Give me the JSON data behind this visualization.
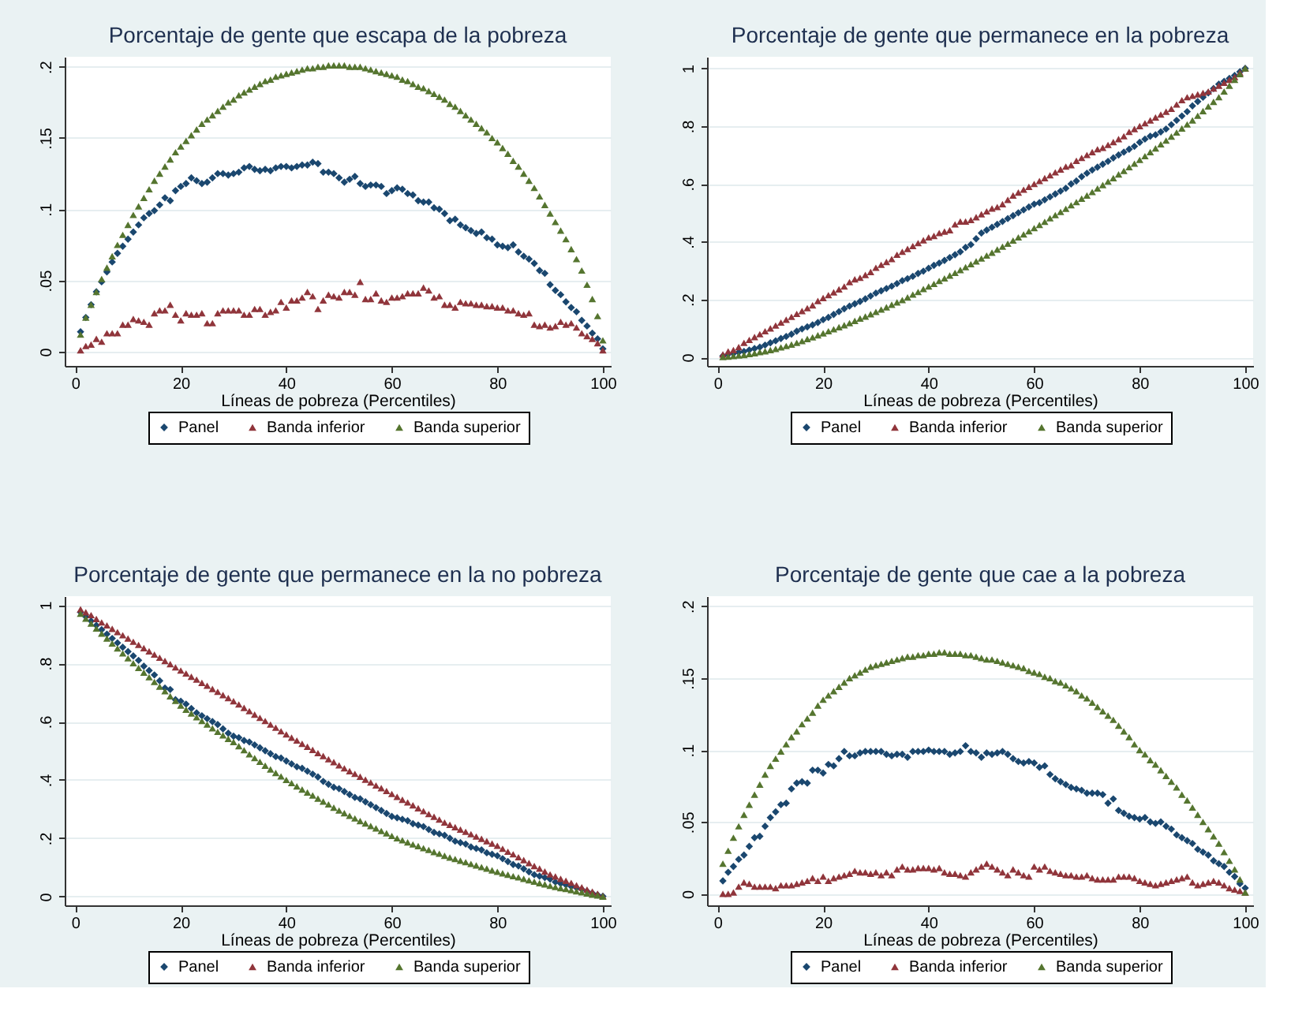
{
  "chart_data": [
    {
      "type": "scatter",
      "title": "Porcentaje de gente que escapa de la pobreza",
      "xlabel": "Líneas de pobreza (Percentiles)",
      "legend": "bottom",
      "grid": "y",
      "xlim": [
        -2,
        101.5
      ],
      "xticks": [
        0,
        20,
        40,
        60,
        80,
        100
      ],
      "ylim": [
        -0.01,
        0.207
      ],
      "yticks": [
        0,
        {
          "value": 0.05,
          "label": ".05"
        },
        {
          "value": 0.1,
          "label": ".1"
        },
        {
          "value": 0.15,
          "label": ".15"
        },
        {
          "value": 0.2,
          "label": ".2"
        }
      ],
      "x": [
        1,
        2,
        3,
        4,
        5,
        6,
        7,
        8,
        9,
        10,
        11,
        12,
        13,
        14,
        15,
        16,
        17,
        18,
        19,
        20,
        21,
        22,
        23,
        24,
        25,
        26,
        27,
        28,
        29,
        30,
        31,
        32,
        33,
        34,
        35,
        36,
        37,
        38,
        39,
        40,
        41,
        42,
        43,
        44,
        45,
        46,
        47,
        48,
        49,
        50,
        51,
        52,
        53,
        54,
        55,
        56,
        57,
        58,
        59,
        60,
        61,
        62,
        63,
        64,
        65,
        66,
        67,
        68,
        69,
        70,
        71,
        72,
        73,
        74,
        75,
        76,
        77,
        78,
        79,
        80,
        81,
        82,
        83,
        84,
        85,
        86,
        87,
        88,
        89,
        90,
        91,
        92,
        93,
        94,
        95,
        96,
        97,
        98,
        99,
        100
      ],
      "series": [
        {
          "name": "Panel",
          "color": "#1a476f",
          "marker": "diamond",
          "values": [
            0.014,
            0.024,
            0.033,
            0.042,
            0.049,
            0.056,
            0.063,
            0.069,
            0.074,
            0.079,
            0.084,
            0.089,
            0.094,
            0.097,
            0.099,
            0.103,
            0.108,
            0.106,
            0.113,
            0.116,
            0.118,
            0.122,
            0.12,
            0.118,
            0.119,
            0.122,
            0.125,
            0.125,
            0.124,
            0.125,
            0.126,
            0.129,
            0.13,
            0.128,
            0.127,
            0.128,
            0.127,
            0.129,
            0.13,
            0.13,
            0.129,
            0.13,
            0.131,
            0.131,
            0.133,
            0.132,
            0.126,
            0.126,
            0.125,
            0.122,
            0.119,
            0.121,
            0.123,
            0.118,
            0.116,
            0.117,
            0.117,
            0.116,
            0.111,
            0.113,
            0.115,
            0.114,
            0.111,
            0.11,
            0.106,
            0.105,
            0.105,
            0.101,
            0.1,
            0.097,
            0.092,
            0.093,
            0.089,
            0.087,
            0.085,
            0.083,
            0.084,
            0.08,
            0.079,
            0.075,
            0.074,
            0.073,
            0.075,
            0.07,
            0.067,
            0.065,
            0.062,
            0.057,
            0.055,
            0.047,
            0.043,
            0.04,
            0.035,
            0.031,
            0.028,
            0.022,
            0.018,
            0.013,
            0.009,
            0.002
          ]
        },
        {
          "name": "Banda inferior",
          "color": "#90353b",
          "marker": "triangle",
          "values": [
            0.001,
            0.004,
            0.005,
            0.009,
            0.007,
            0.013,
            0.013,
            0.013,
            0.019,
            0.019,
            0.023,
            0.022,
            0.021,
            0.019,
            0.027,
            0.029,
            0.029,
            0.033,
            0.026,
            0.022,
            0.027,
            0.026,
            0.026,
            0.027,
            0.02,
            0.02,
            0.027,
            0.029,
            0.029,
            0.029,
            0.029,
            0.026,
            0.026,
            0.03,
            0.03,
            0.026,
            0.028,
            0.029,
            0.035,
            0.031,
            0.036,
            0.036,
            0.038,
            0.042,
            0.039,
            0.03,
            0.036,
            0.04,
            0.039,
            0.038,
            0.042,
            0.042,
            0.04,
            0.049,
            0.037,
            0.037,
            0.041,
            0.036,
            0.035,
            0.038,
            0.038,
            0.039,
            0.041,
            0.041,
            0.041,
            0.045,
            0.043,
            0.038,
            0.039,
            0.033,
            0.033,
            0.031,
            0.035,
            0.034,
            0.034,
            0.033,
            0.033,
            0.032,
            0.032,
            0.031,
            0.031,
            0.029,
            0.029,
            0.027,
            0.026,
            0.027,
            0.019,
            0.018,
            0.019,
            0.017,
            0.018,
            0.021,
            0.019,
            0.02,
            0.017,
            0.013,
            0.011,
            0.009,
            0.006,
            0.001
          ]
        },
        {
          "name": "Banda superior",
          "color": "#55752f",
          "marker": "triangle",
          "values": [
            0.012,
            0.024,
            0.033,
            0.042,
            0.051,
            0.059,
            0.067,
            0.075,
            0.082,
            0.089,
            0.096,
            0.102,
            0.108,
            0.114,
            0.12,
            0.125,
            0.13,
            0.135,
            0.14,
            0.144,
            0.148,
            0.152,
            0.156,
            0.16,
            0.163,
            0.166,
            0.169,
            0.172,
            0.175,
            0.177,
            0.18,
            0.182,
            0.184,
            0.186,
            0.188,
            0.19,
            0.191,
            0.193,
            0.194,
            0.195,
            0.196,
            0.197,
            0.198,
            0.199,
            0.199,
            0.2,
            0.2,
            0.201,
            0.201,
            0.201,
            0.201,
            0.2,
            0.2,
            0.2,
            0.199,
            0.198,
            0.197,
            0.196,
            0.195,
            0.194,
            0.193,
            0.191,
            0.19,
            0.188,
            0.186,
            0.185,
            0.183,
            0.181,
            0.179,
            0.177,
            0.174,
            0.172,
            0.169,
            0.166,
            0.163,
            0.16,
            0.157,
            0.154,
            0.15,
            0.147,
            0.143,
            0.139,
            0.134,
            0.13,
            0.125,
            0.12,
            0.115,
            0.109,
            0.103,
            0.097,
            0.091,
            0.085,
            0.079,
            0.072,
            0.065,
            0.057,
            0.047,
            0.037,
            0.025,
            0.008
          ]
        }
      ]
    },
    {
      "type": "scatter",
      "title": "Porcentaje de gente que permanece en la pobreza",
      "xlabel": "Líneas de pobreza (Percentiles)",
      "legend": "bottom",
      "grid": "y",
      "xlim": [
        -2,
        101.5
      ],
      "xticks": [
        0,
        20,
        40,
        60,
        80,
        100
      ],
      "ylim": [
        -0.03,
        1.04
      ],
      "yticks": [
        0,
        {
          "value": 0.2,
          "label": ".2"
        },
        {
          "value": 0.4,
          "label": ".4"
        },
        {
          "value": 0.6,
          "label": ".6"
        },
        {
          "value": 0.8,
          "label": ".8"
        },
        1
      ],
      "x": [
        1,
        2,
        3,
        4,
        5,
        6,
        7,
        8,
        9,
        10,
        11,
        12,
        13,
        14,
        15,
        16,
        17,
        18,
        19,
        20,
        21,
        22,
        23,
        24,
        25,
        26,
        27,
        28,
        29,
        30,
        31,
        32,
        33,
        34,
        35,
        36,
        37,
        38,
        39,
        40,
        41,
        42,
        43,
        44,
        45,
        46,
        47,
        48,
        49,
        50,
        51,
        52,
        53,
        54,
        55,
        56,
        57,
        58,
        59,
        60,
        61,
        62,
        63,
        64,
        65,
        66,
        67,
        68,
        69,
        70,
        71,
        72,
        73,
        74,
        75,
        76,
        77,
        78,
        79,
        80,
        81,
        82,
        83,
        84,
        85,
        86,
        87,
        88,
        89,
        90,
        91,
        92,
        93,
        94,
        95,
        96,
        97,
        98,
        99,
        100
      ],
      "series": [
        {
          "name": "Panel",
          "color": "#1a476f",
          "marker": "diamond",
          "values": [
            0.005,
            0.01,
            0.013,
            0.017,
            0.02,
            0.025,
            0.03,
            0.035,
            0.042,
            0.05,
            0.057,
            0.065,
            0.072,
            0.08,
            0.09,
            0.098,
            0.105,
            0.112,
            0.12,
            0.13,
            0.138,
            0.148,
            0.158,
            0.168,
            0.177,
            0.185,
            0.193,
            0.202,
            0.212,
            0.222,
            0.23,
            0.238,
            0.246,
            0.255,
            0.265,
            0.272,
            0.28,
            0.29,
            0.298,
            0.308,
            0.318,
            0.326,
            0.335,
            0.345,
            0.355,
            0.365,
            0.38,
            0.39,
            0.41,
            0.43,
            0.44,
            0.45,
            0.46,
            0.47,
            0.48,
            0.49,
            0.5,
            0.51,
            0.52,
            0.53,
            0.535,
            0.545,
            0.555,
            0.565,
            0.575,
            0.585,
            0.6,
            0.61,
            0.625,
            0.637,
            0.648,
            0.658,
            0.668,
            0.678,
            0.69,
            0.7,
            0.71,
            0.72,
            0.73,
            0.744,
            0.755,
            0.765,
            0.77,
            0.78,
            0.79,
            0.805,
            0.82,
            0.835,
            0.85,
            0.87,
            0.885,
            0.9,
            0.915,
            0.93,
            0.945,
            0.955,
            0.965,
            0.975,
            0.988,
            1.0
          ]
        },
        {
          "name": "Banda inferior",
          "color": "#90353b",
          "marker": "triangle",
          "values": [
            0.01,
            0.02,
            0.025,
            0.035,
            0.05,
            0.06,
            0.07,
            0.08,
            0.09,
            0.1,
            0.11,
            0.12,
            0.13,
            0.14,
            0.15,
            0.16,
            0.17,
            0.18,
            0.195,
            0.205,
            0.215,
            0.225,
            0.235,
            0.245,
            0.26,
            0.27,
            0.275,
            0.285,
            0.295,
            0.31,
            0.32,
            0.33,
            0.34,
            0.355,
            0.365,
            0.375,
            0.385,
            0.395,
            0.405,
            0.415,
            0.42,
            0.43,
            0.435,
            0.44,
            0.46,
            0.47,
            0.47,
            0.475,
            0.485,
            0.495,
            0.505,
            0.515,
            0.52,
            0.53,
            0.545,
            0.56,
            0.57,
            0.58,
            0.59,
            0.6,
            0.61,
            0.62,
            0.63,
            0.64,
            0.65,
            0.66,
            0.665,
            0.68,
            0.69,
            0.7,
            0.71,
            0.72,
            0.725,
            0.735,
            0.745,
            0.755,
            0.765,
            0.78,
            0.79,
            0.8,
            0.81,
            0.82,
            0.83,
            0.84,
            0.85,
            0.86,
            0.875,
            0.89,
            0.9,
            0.905,
            0.91,
            0.915,
            0.92,
            0.93,
            0.94,
            0.95,
            0.96,
            0.97,
            0.985,
            1.0
          ]
        },
        {
          "name": "Banda superior",
          "color": "#55752f",
          "marker": "triangle",
          "values": [
            0.001,
            0.002,
            0.004,
            0.006,
            0.008,
            0.011,
            0.014,
            0.018,
            0.021,
            0.025,
            0.029,
            0.034,
            0.039,
            0.044,
            0.05,
            0.056,
            0.063,
            0.069,
            0.076,
            0.083,
            0.09,
            0.097,
            0.104,
            0.111,
            0.118,
            0.126,
            0.134,
            0.141,
            0.149,
            0.157,
            0.165,
            0.173,
            0.182,
            0.19,
            0.198,
            0.207,
            0.217,
            0.226,
            0.236,
            0.245,
            0.254,
            0.264,
            0.273,
            0.283,
            0.292,
            0.302,
            0.312,
            0.322,
            0.332,
            0.342,
            0.352,
            0.362,
            0.373,
            0.383,
            0.393,
            0.404,
            0.415,
            0.425,
            0.436,
            0.447,
            0.458,
            0.469,
            0.481,
            0.492,
            0.503,
            0.514,
            0.526,
            0.537,
            0.549,
            0.56,
            0.572,
            0.584,
            0.596,
            0.608,
            0.62,
            0.633,
            0.645,
            0.658,
            0.67,
            0.683,
            0.696,
            0.71,
            0.723,
            0.737,
            0.75,
            0.764,
            0.778,
            0.792,
            0.806,
            0.82,
            0.836,
            0.852,
            0.868,
            0.884,
            0.9,
            0.92,
            0.94,
            0.96,
            0.98,
            1.0
          ]
        }
      ]
    },
    {
      "type": "scatter",
      "title": "Porcentaje de gente que permanece en la no pobreza",
      "xlabel": "Líneas de pobreza (Percentiles)",
      "legend": "bottom",
      "grid": "y",
      "xlim": [
        -2,
        101.5
      ],
      "xticks": [
        0,
        20,
        40,
        60,
        80,
        100
      ],
      "ylim": [
        -0.03,
        1.03
      ],
      "yticks": [
        0,
        {
          "value": 0.2,
          "label": ".2"
        },
        {
          "value": 0.4,
          "label": ".4"
        },
        {
          "value": 0.6,
          "label": ".6"
        },
        {
          "value": 0.8,
          "label": ".8"
        },
        1
      ],
      "x": [
        1,
        2,
        3,
        4,
        5,
        6,
        7,
        8,
        9,
        10,
        11,
        12,
        13,
        14,
        15,
        16,
        17,
        18,
        19,
        20,
        21,
        22,
        23,
        24,
        25,
        26,
        27,
        28,
        29,
        30,
        31,
        32,
        33,
        34,
        35,
        36,
        37,
        38,
        39,
        40,
        41,
        42,
        43,
        44,
        45,
        46,
        47,
        48,
        49,
        50,
        51,
        52,
        53,
        54,
        55,
        56,
        57,
        58,
        59,
        60,
        61,
        62,
        63,
        64,
        65,
        66,
        67,
        68,
        69,
        70,
        71,
        72,
        73,
        74,
        75,
        76,
        77,
        78,
        79,
        80,
        81,
        82,
        83,
        84,
        85,
        86,
        87,
        88,
        89,
        90,
        91,
        92,
        93,
        94,
        95,
        96,
        97,
        98,
        99,
        100
      ],
      "series": [
        {
          "name": "Panel",
          "color": "#1a476f",
          "marker": "diamond",
          "values": [
            0.975,
            0.96,
            0.945,
            0.93,
            0.915,
            0.9,
            0.885,
            0.87,
            0.855,
            0.84,
            0.825,
            0.81,
            0.79,
            0.775,
            0.76,
            0.74,
            0.715,
            0.71,
            0.675,
            0.67,
            0.66,
            0.645,
            0.63,
            0.62,
            0.61,
            0.6,
            0.59,
            0.575,
            0.56,
            0.55,
            0.545,
            0.535,
            0.53,
            0.52,
            0.51,
            0.5,
            0.49,
            0.48,
            0.475,
            0.465,
            0.455,
            0.445,
            0.44,
            0.43,
            0.42,
            0.41,
            0.395,
            0.385,
            0.375,
            0.37,
            0.36,
            0.35,
            0.34,
            0.335,
            0.325,
            0.315,
            0.305,
            0.295,
            0.285,
            0.275,
            0.27,
            0.265,
            0.26,
            0.25,
            0.245,
            0.24,
            0.23,
            0.22,
            0.215,
            0.21,
            0.2,
            0.19,
            0.185,
            0.18,
            0.17,
            0.165,
            0.16,
            0.15,
            0.145,
            0.14,
            0.13,
            0.12,
            0.11,
            0.105,
            0.095,
            0.085,
            0.075,
            0.07,
            0.065,
            0.06,
            0.05,
            0.045,
            0.04,
            0.035,
            0.03,
            0.025,
            0.018,
            0.012,
            0.006,
            0.001
          ]
        },
        {
          "name": "Banda inferior",
          "color": "#90353b",
          "marker": "triangle",
          "values": [
            0.985,
            0.975,
            0.965,
            0.952,
            0.94,
            0.93,
            0.918,
            0.907,
            0.896,
            0.885,
            0.874,
            0.863,
            0.852,
            0.841,
            0.83,
            0.819,
            0.808,
            0.797,
            0.786,
            0.775,
            0.765,
            0.754,
            0.744,
            0.733,
            0.723,
            0.712,
            0.702,
            0.691,
            0.681,
            0.67,
            0.659,
            0.647,
            0.636,
            0.624,
            0.613,
            0.602,
            0.59,
            0.579,
            0.567,
            0.556,
            0.545,
            0.535,
            0.524,
            0.514,
            0.503,
            0.492,
            0.482,
            0.471,
            0.461,
            0.45,
            0.44,
            0.43,
            0.421,
            0.411,
            0.401,
            0.391,
            0.381,
            0.372,
            0.362,
            0.352,
            0.342,
            0.332,
            0.323,
            0.313,
            0.303,
            0.293,
            0.283,
            0.274,
            0.264,
            0.254,
            0.246,
            0.238,
            0.23,
            0.222,
            0.214,
            0.206,
            0.198,
            0.19,
            0.182,
            0.174,
            0.164,
            0.154,
            0.145,
            0.135,
            0.125,
            0.115,
            0.105,
            0.096,
            0.086,
            0.076,
            0.069,
            0.061,
            0.054,
            0.047,
            0.039,
            0.032,
            0.024,
            0.017,
            0.01,
            0.002
          ]
        },
        {
          "name": "Banda superior",
          "color": "#55752f",
          "marker": "triangle",
          "values": [
            0.97,
            0.953,
            0.936,
            0.919,
            0.902,
            0.885,
            0.868,
            0.851,
            0.834,
            0.817,
            0.8,
            0.784,
            0.768,
            0.752,
            0.736,
            0.72,
            0.704,
            0.687,
            0.671,
            0.655,
            0.641,
            0.628,
            0.615,
            0.602,
            0.59,
            0.577,
            0.565,
            0.553,
            0.541,
            0.53,
            0.516,
            0.502,
            0.488,
            0.475,
            0.462,
            0.449,
            0.436,
            0.424,
            0.412,
            0.4,
            0.389,
            0.378,
            0.367,
            0.357,
            0.347,
            0.336,
            0.326,
            0.316,
            0.305,
            0.295,
            0.286,
            0.277,
            0.268,
            0.259,
            0.251,
            0.242,
            0.234,
            0.225,
            0.217,
            0.208,
            0.2,
            0.193,
            0.186,
            0.179,
            0.173,
            0.166,
            0.16,
            0.153,
            0.147,
            0.14,
            0.134,
            0.129,
            0.123,
            0.118,
            0.112,
            0.107,
            0.101,
            0.096,
            0.09,
            0.085,
            0.08,
            0.075,
            0.07,
            0.066,
            0.061,
            0.056,
            0.051,
            0.046,
            0.042,
            0.037,
            0.033,
            0.029,
            0.026,
            0.022,
            0.018,
            0.015,
            0.011,
            0.007,
            0.004,
            0
          ]
        }
      ]
    },
    {
      "type": "scatter",
      "title": "Porcentaje de gente que cae a la pobreza",
      "xlabel": "Líneas de pobreza (Percentiles)",
      "legend": "bottom",
      "grid": "y",
      "xlim": [
        -2,
        101.5
      ],
      "xticks": [
        0,
        20,
        40,
        60,
        80,
        100
      ],
      "ylim": [
        -0.008,
        0.207
      ],
      "yticks": [
        0,
        {
          "value": 0.05,
          "label": ".05"
        },
        {
          "value": 0.1,
          "label": ".1"
        },
        {
          "value": 0.15,
          "label": ".15"
        },
        {
          "value": 0.2,
          "label": ".2"
        }
      ],
      "x": [
        1,
        2,
        3,
        4,
        5,
        6,
        7,
        8,
        9,
        10,
        11,
        12,
        13,
        14,
        15,
        16,
        17,
        18,
        19,
        20,
        21,
        22,
        23,
        24,
        25,
        26,
        27,
        28,
        29,
        30,
        31,
        32,
        33,
        34,
        35,
        36,
        37,
        38,
        39,
        40,
        41,
        42,
        43,
        44,
        45,
        46,
        47,
        48,
        49,
        50,
        51,
        52,
        53,
        54,
        55,
        56,
        57,
        58,
        59,
        60,
        61,
        62,
        63,
        64,
        65,
        66,
        67,
        68,
        69,
        70,
        71,
        72,
        73,
        74,
        75,
        76,
        77,
        78,
        79,
        80,
        81,
        82,
        83,
        84,
        85,
        86,
        87,
        88,
        89,
        90,
        91,
        92,
        93,
        94,
        95,
        96,
        97,
        98,
        99,
        100
      ],
      "series": [
        {
          "name": "Panel",
          "color": "#1a476f",
          "marker": "diamond",
          "values": [
            0.009,
            0.015,
            0.019,
            0.024,
            0.027,
            0.033,
            0.039,
            0.04,
            0.047,
            0.053,
            0.057,
            0.062,
            0.063,
            0.073,
            0.077,
            0.078,
            0.077,
            0.086,
            0.086,
            0.084,
            0.09,
            0.089,
            0.094,
            0.099,
            0.096,
            0.096,
            0.098,
            0.099,
            0.099,
            0.099,
            0.099,
            0.097,
            0.096,
            0.097,
            0.097,
            0.095,
            0.099,
            0.099,
            0.099,
            0.1,
            0.099,
            0.099,
            0.099,
            0.097,
            0.098,
            0.099,
            0.103,
            0.099,
            0.098,
            0.095,
            0.098,
            0.097,
            0.098,
            0.099,
            0.097,
            0.094,
            0.092,
            0.091,
            0.092,
            0.091,
            0.088,
            0.089,
            0.083,
            0.08,
            0.078,
            0.076,
            0.074,
            0.073,
            0.072,
            0.07,
            0.07,
            0.07,
            0.069,
            0.063,
            0.066,
            0.058,
            0.056,
            0.054,
            0.053,
            0.052,
            0.053,
            0.05,
            0.049,
            0.05,
            0.047,
            0.045,
            0.041,
            0.039,
            0.037,
            0.035,
            0.031,
            0.029,
            0.027,
            0.023,
            0.021,
            0.019,
            0.015,
            0.012,
            0.007,
            0.004
          ]
        },
        {
          "name": "Banda inferior",
          "color": "#90353b",
          "marker": "triangle",
          "values": [
            0,
            0,
            0.001,
            0.005,
            0.008,
            0.007,
            0.005,
            0.005,
            0.005,
            0.005,
            0.004,
            0.006,
            0.006,
            0.006,
            0.007,
            0.008,
            0.009,
            0.011,
            0.009,
            0.012,
            0.009,
            0.011,
            0.012,
            0.013,
            0.014,
            0.016,
            0.015,
            0.015,
            0.014,
            0.015,
            0.013,
            0.015,
            0.013,
            0.017,
            0.019,
            0.017,
            0.017,
            0.018,
            0.018,
            0.018,
            0.017,
            0.018,
            0.015,
            0.014,
            0.014,
            0.013,
            0.012,
            0.015,
            0.017,
            0.019,
            0.021,
            0.019,
            0.017,
            0.015,
            0.013,
            0.017,
            0.015,
            0.013,
            0.012,
            0.019,
            0.017,
            0.019,
            0.016,
            0.015,
            0.014,
            0.013,
            0.013,
            0.012,
            0.012,
            0.013,
            0.011,
            0.01,
            0.01,
            0.01,
            0.01,
            0.012,
            0.012,
            0.012,
            0.011,
            0.009,
            0.008,
            0.007,
            0.006,
            0.007,
            0.008,
            0.009,
            0.01,
            0.011,
            0.012,
            0.008,
            0.006,
            0.007,
            0.008,
            0.009,
            0.008,
            0.006,
            0.004,
            0.003,
            0.002,
            0.001
          ]
        },
        {
          "name": "Banda superior",
          "color": "#55752f",
          "marker": "triangle",
          "values": [
            0.021,
            0.03,
            0.039,
            0.047,
            0.055,
            0.062,
            0.069,
            0.076,
            0.083,
            0.089,
            0.094,
            0.099,
            0.104,
            0.109,
            0.113,
            0.118,
            0.122,
            0.126,
            0.131,
            0.135,
            0.138,
            0.141,
            0.144,
            0.147,
            0.15,
            0.152,
            0.154,
            0.156,
            0.158,
            0.159,
            0.16,
            0.161,
            0.162,
            0.163,
            0.164,
            0.165,
            0.165,
            0.166,
            0.166,
            0.167,
            0.167,
            0.168,
            0.168,
            0.167,
            0.167,
            0.167,
            0.166,
            0.166,
            0.165,
            0.164,
            0.163,
            0.163,
            0.162,
            0.161,
            0.16,
            0.159,
            0.158,
            0.157,
            0.155,
            0.154,
            0.153,
            0.151,
            0.15,
            0.148,
            0.147,
            0.145,
            0.143,
            0.141,
            0.138,
            0.136,
            0.133,
            0.13,
            0.127,
            0.124,
            0.121,
            0.117,
            0.113,
            0.109,
            0.104,
            0.1,
            0.097,
            0.093,
            0.09,
            0.086,
            0.082,
            0.078,
            0.074,
            0.069,
            0.065,
            0.06,
            0.055,
            0.05,
            0.045,
            0.04,
            0.035,
            0.029,
            0.023,
            0.017,
            0.01,
            0.001
          ]
        }
      ]
    }
  ]
}
